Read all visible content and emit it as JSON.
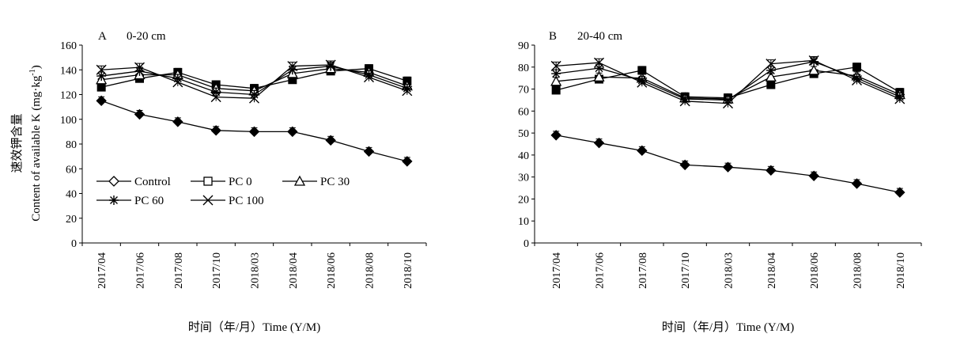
{
  "y_axis_label_cn": "速效钾含量",
  "y_axis_label_en_main": "Content of available K (mg·kg",
  "y_axis_label_en_sup": "-1",
  "y_axis_label_en_close": ")",
  "chart_data": [
    {
      "type": "line",
      "panel": "A",
      "title": "0-20 cm",
      "xlabel": "时间（年/月）Time (Y/M)",
      "ylabel": "速效钾含量 Content of available K (mg·kg-1)",
      "categories": [
        "2017/04",
        "2017/06",
        "2017/08",
        "2017/10",
        "2018/03",
        "2018/04",
        "2018/06",
        "2018/08",
        "2018/10"
      ],
      "ylim": [
        0,
        160
      ],
      "yticks": [
        0,
        20,
        40,
        60,
        80,
        100,
        120,
        140,
        160
      ],
      "series": [
        {
          "name": "Control",
          "marker": "diamond-open",
          "values": [
            115,
            104,
            98,
            91,
            90,
            90,
            83,
            74,
            66
          ]
        },
        {
          "name": "PC 0",
          "marker": "square-open",
          "values": [
            126,
            133,
            138,
            128,
            125,
            132,
            139,
            141,
            131
          ]
        },
        {
          "name": "PC 30",
          "marker": "triangle-open",
          "values": [
            132,
            136,
            136,
            125,
            123,
            137,
            141,
            138,
            127
          ]
        },
        {
          "name": "PC 60",
          "marker": "star",
          "values": [
            135,
            139,
            133,
            122,
            120,
            140,
            143,
            136,
            125
          ]
        },
        {
          "name": "PC 100",
          "marker": "x",
          "values": [
            140,
            142,
            130,
            118,
            117,
            143,
            144,
            134,
            123
          ]
        }
      ],
      "legend_position": "lower-left",
      "grid": false
    },
    {
      "type": "line",
      "panel": "B",
      "title": "20-40 cm",
      "xlabel": "时间（年/月）Time (Y/M)",
      "categories": [
        "2017/04",
        "2017/06",
        "2017/08",
        "2017/10",
        "2018/03",
        "2018/04",
        "2018/06",
        "2018/08",
        "2018/10"
      ],
      "ylim": [
        0,
        90
      ],
      "yticks": [
        0,
        10,
        20,
        30,
        40,
        50,
        60,
        70,
        80,
        90
      ],
      "series": [
        {
          "name": "Control",
          "marker": "diamond-open",
          "values": [
            49,
            45.5,
            42,
            35.5,
            34.5,
            33,
            30.5,
            27,
            23
          ]
        },
        {
          "name": "PC 0",
          "marker": "square-open",
          "values": [
            69.5,
            74.5,
            78.5,
            66.5,
            66,
            72,
            77,
            80,
            68.5
          ]
        },
        {
          "name": "PC 30",
          "marker": "triangle-open",
          "values": [
            73.5,
            75.5,
            75,
            66,
            65.5,
            75.5,
            78.5,
            76,
            67.5
          ]
        },
        {
          "name": "PC 60",
          "marker": "star",
          "values": [
            77,
            79.5,
            74,
            65.5,
            65,
            78.5,
            82.5,
            75,
            66.5
          ]
        },
        {
          "name": "PC 100",
          "marker": "x",
          "values": [
            80.5,
            82,
            73,
            64.5,
            63.5,
            81.5,
            83,
            74,
            65.5
          ]
        }
      ],
      "grid": false
    }
  ]
}
